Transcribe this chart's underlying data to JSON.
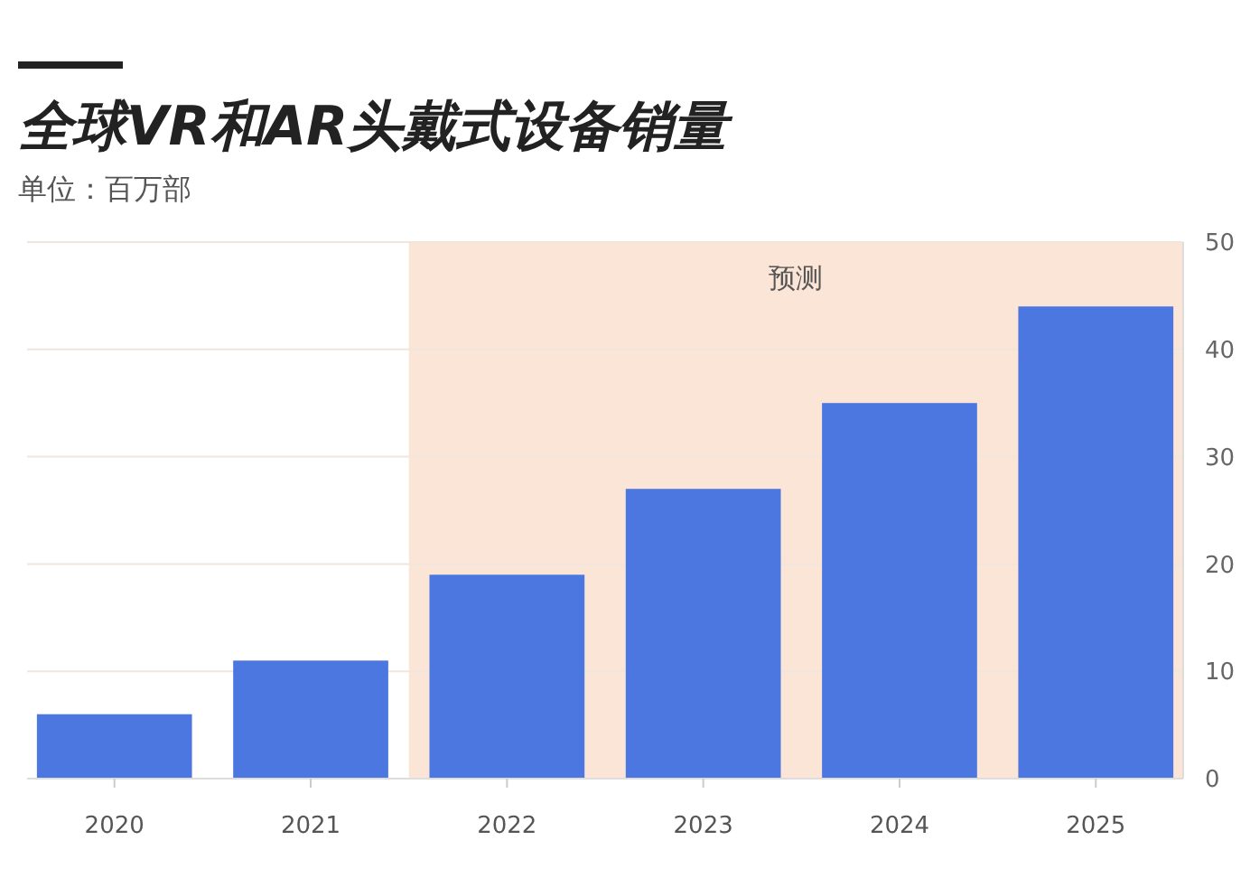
{
  "chart_data": {
    "type": "bar",
    "title": "全球VR和AR头戴式设备销量",
    "subtitle": "单位：百万部",
    "categories": [
      "2020",
      "2021",
      "2022",
      "2023",
      "2024",
      "2025"
    ],
    "values": [
      6,
      11,
      19,
      27,
      35,
      44
    ],
    "color": "#4c76e0",
    "ylim": [
      0,
      50
    ],
    "yticks": [
      0,
      10,
      20,
      30,
      40,
      50
    ],
    "grid": "y",
    "bands": [
      {
        "axis": "x",
        "from": "2022",
        "to": "2025",
        "label": "预测",
        "color": "#fbe5d6"
      }
    ]
  }
}
